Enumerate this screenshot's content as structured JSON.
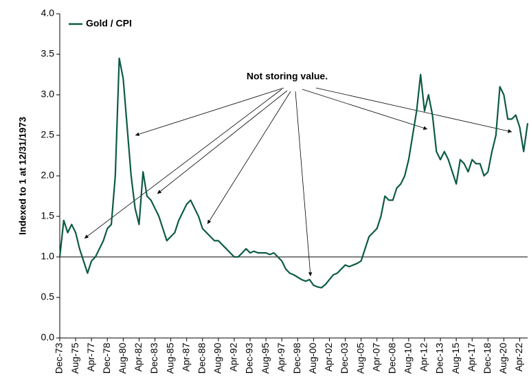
{
  "chart_data": {
    "type": "line",
    "y_label": "Indexed to 1 at 12/31/1973",
    "annotation": "Not storing value.",
    "reference_line": 1,
    "ylim": [
      0,
      4
    ],
    "yticks": [
      {
        "value": 0,
        "label": "0.0"
      },
      {
        "value": 0.5,
        "label": "0.5"
      },
      {
        "value": 1,
        "label": "1.0"
      },
      {
        "value": 1.5,
        "label": "1.5"
      },
      {
        "value": 2,
        "label": "2.0"
      },
      {
        "value": 2.5,
        "label": "2.5"
      },
      {
        "value": 3,
        "label": "3.0"
      },
      {
        "value": 3.5,
        "label": "3.5"
      },
      {
        "value": 4,
        "label": "4.0"
      }
    ],
    "legend": "upper left",
    "categories": [
      "Dec-73",
      null,
      null,
      null,
      "Aug-75",
      null,
      null,
      null,
      "Apr-77",
      null,
      null,
      null,
      "Dec-78",
      null,
      null,
      null,
      "Aug-80",
      null,
      null,
      null,
      "Apr-82",
      null,
      null,
      null,
      "Dec-83",
      null,
      null,
      null,
      "Aug-85",
      null,
      null,
      null,
      "Apr-87",
      null,
      null,
      null,
      "Dec-88",
      null,
      null,
      null,
      "Aug-90",
      null,
      null,
      null,
      "Apr-92",
      null,
      null,
      null,
      "Dec-93",
      null,
      null,
      null,
      "Aug-95",
      null,
      null,
      null,
      "Apr-97",
      null,
      null,
      null,
      "Dec-98",
      null,
      null,
      null,
      "Aug-00",
      null,
      null,
      null,
      "Apr-02",
      null,
      null,
      null,
      "Dec-03",
      null,
      null,
      null,
      "Aug-05",
      null,
      null,
      null,
      "Apr-07",
      null,
      null,
      null,
      "Dec-08",
      null,
      null,
      null,
      "Aug-10",
      null,
      null,
      null,
      "Apr-12",
      null,
      null,
      null,
      "Dec-13",
      null,
      null,
      null,
      "Aug-15",
      null,
      null,
      null,
      "Apr-17",
      null,
      null,
      null,
      "Dec-18",
      null,
      null,
      null,
      "Aug-20",
      null,
      null,
      null,
      "Apr-22",
      null,
      null
    ],
    "series": [
      {
        "name": "Gold / CPI",
        "color": "#0b5a45",
        "values": [
          1.0,
          1.45,
          1.3,
          1.4,
          1.3,
          1.1,
          0.95,
          0.8,
          0.95,
          1.0,
          1.1,
          1.2,
          1.35,
          1.4,
          2.0,
          3.45,
          3.2,
          2.6,
          2.0,
          1.6,
          1.4,
          2.05,
          1.75,
          1.7,
          1.6,
          1.5,
          1.35,
          1.2,
          1.25,
          1.3,
          1.45,
          1.55,
          1.65,
          1.7,
          1.6,
          1.5,
          1.35,
          1.3,
          1.25,
          1.2,
          1.2,
          1.15,
          1.1,
          1.05,
          1.0,
          1.0,
          1.05,
          1.1,
          1.05,
          1.07,
          1.05,
          1.05,
          1.05,
          1.03,
          1.05,
          1.0,
          0.95,
          0.85,
          0.8,
          0.78,
          0.75,
          0.72,
          0.7,
          0.72,
          0.65,
          0.63,
          0.62,
          0.66,
          0.72,
          0.78,
          0.8,
          0.85,
          0.9,
          0.88,
          0.9,
          0.92,
          0.95,
          1.1,
          1.25,
          1.3,
          1.35,
          1.5,
          1.75,
          1.7,
          1.7,
          1.85,
          1.9,
          2.0,
          2.2,
          2.5,
          2.8,
          3.25,
          2.8,
          3.0,
          2.75,
          2.3,
          2.2,
          2.3,
          2.2,
          2.05,
          1.9,
          2.2,
          2.15,
          2.05,
          2.2,
          2.15,
          2.15,
          2.0,
          2.05,
          2.3,
          2.5,
          3.1,
          3.0,
          2.7,
          2.7,
          2.75,
          2.6,
          2.3,
          2.65
        ]
      }
    ]
  }
}
